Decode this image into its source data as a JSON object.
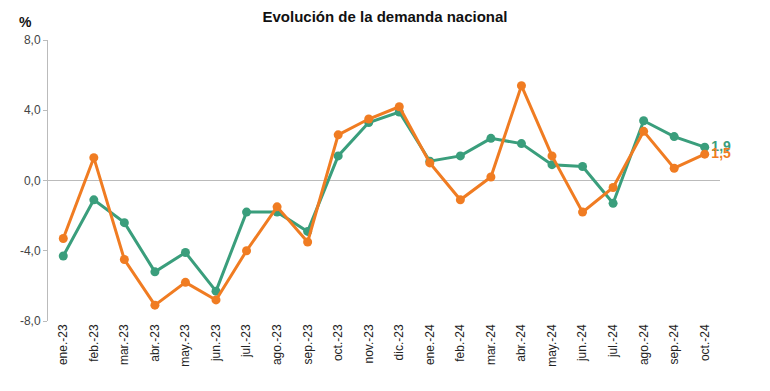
{
  "chart_data": {
    "type": "line",
    "title": "Evolución de la demanda nacional",
    "ylabel": "%",
    "categories": [
      "ene.-23",
      "feb.-23",
      "mar.-23",
      "abr.-23",
      "may.-23",
      "jun.-23",
      "jul.-23",
      "ago.-23",
      "sep.-23",
      "oct.-23",
      "nov.-23",
      "dic.-23",
      "ene.-24",
      "feb.-24",
      "mar.-24",
      "abr.-24",
      "may.-24",
      "jun.-24",
      "jul.-24",
      "ago.-24",
      "sep.-24",
      "oct.-24"
    ],
    "series": [
      {
        "color": "#3a9e7c",
        "marker": "circle",
        "values": [
          -4.3,
          -1.1,
          -2.4,
          -5.2,
          -4.1,
          -6.3,
          -1.8,
          -1.8,
          -2.9,
          1.4,
          3.3,
          3.9,
          1.1,
          1.4,
          2.4,
          2.1,
          0.9,
          0.8,
          -1.3,
          3.4,
          2.5,
          1.9
        ],
        "value_labels": [
          null,
          null,
          null,
          null,
          null,
          null,
          null,
          null,
          null,
          null,
          null,
          null,
          null,
          null,
          null,
          null,
          null,
          null,
          null,
          null,
          null,
          "1,9"
        ]
      },
      {
        "color": "#f07c22",
        "marker": "circle",
        "values": [
          -3.3,
          1.3,
          -4.5,
          -7.1,
          -5.8,
          -6.8,
          -4.0,
          -1.5,
          -3.5,
          2.6,
          3.5,
          4.2,
          1.0,
          -1.1,
          0.2,
          5.4,
          1.4,
          -1.8,
          -0.4,
          2.8,
          0.7,
          1.5
        ],
        "value_labels": [
          null,
          null,
          null,
          null,
          null,
          null,
          null,
          null,
          null,
          null,
          null,
          null,
          null,
          null,
          null,
          null,
          null,
          null,
          null,
          null,
          null,
          "1,5"
        ]
      }
    ],
    "ylim": [
      -8,
      8
    ],
    "yticks": [
      {
        "value": -8,
        "label": "-8,0"
      },
      {
        "value": -4,
        "label": "-4,0"
      },
      {
        "value": 0,
        "label": "0,0"
      },
      {
        "value": 4,
        "label": "4,0"
      },
      {
        "value": 8,
        "label": "8,0"
      }
    ],
    "grid": false
  }
}
